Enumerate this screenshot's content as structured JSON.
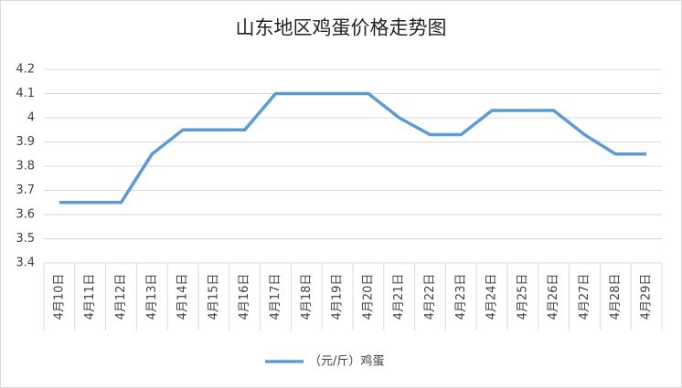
{
  "chart_data": {
    "type": "line",
    "title": "山东地区鸡蛋价格走势图",
    "categories": [
      "4月10日",
      "4月11日",
      "4月12日",
      "4月13日",
      "4月14日",
      "4月15日",
      "4月16日",
      "4月17日",
      "4月18日",
      "4月19日",
      "4月20日",
      "4月21日",
      "4月22日",
      "4月23日",
      "4月24日",
      "4月25日",
      "4月26日",
      "4月27日",
      "4月28日",
      "4月29日"
    ],
    "series": [
      {
        "name": "（元/斤）鸡蛋",
        "color": "#5b9bd5",
        "values": [
          3.65,
          3.65,
          3.65,
          3.85,
          3.95,
          3.95,
          3.95,
          4.1,
          4.1,
          4.1,
          4.1,
          4.0,
          3.93,
          3.93,
          4.03,
          4.03,
          4.03,
          3.93,
          3.85,
          3.85
        ]
      }
    ],
    "ylim": [
      3.4,
      4.2
    ],
    "yticks": [
      3.4,
      3.5,
      3.6,
      3.7,
      3.8,
      3.9,
      4,
      4.1,
      4.2
    ],
    "grid": true,
    "legend": "bottom"
  }
}
